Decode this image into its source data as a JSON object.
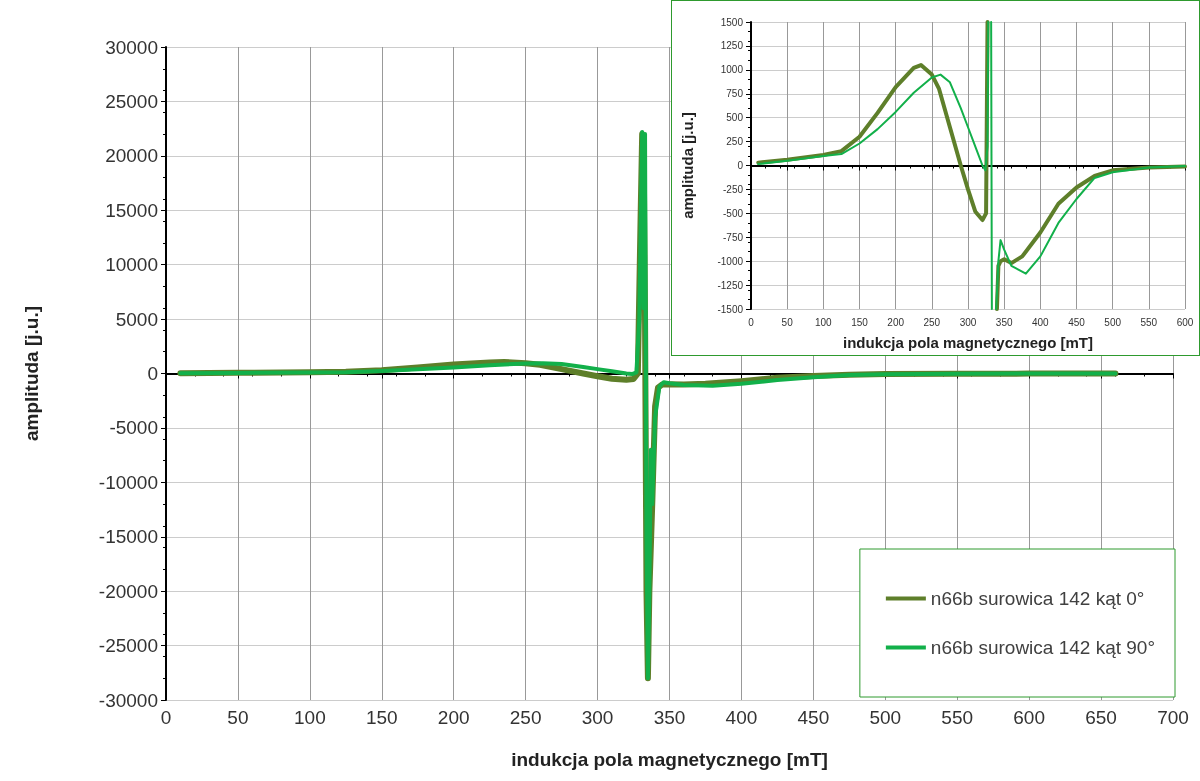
{
  "chart_data": [
    {
      "type": "line",
      "xlabel": "indukcja pola magnetycznego [mT]",
      "ylabel": "amplituda [j.u.]",
      "xlim": [
        0,
        700
      ],
      "xticks": [
        0,
        50,
        100,
        150,
        200,
        250,
        300,
        350,
        400,
        450,
        500,
        550,
        600,
        650,
        700
      ],
      "ylim": [
        -30000,
        30000
      ],
      "yticks": [
        -30000,
        -25000,
        -20000,
        -15000,
        -10000,
        -5000,
        0,
        5000,
        10000,
        15000,
        20000,
        25000,
        30000
      ],
      "grid": true,
      "legend": "bottom right",
      "marker": "none",
      "line_style": "solid",
      "series": [
        {
          "name": "n66b surowica 142 kąt 0°",
          "color": "#5e7f2a",
          "x": [
            10,
            50,
            100,
            125,
            150,
            175,
            200,
            225,
            235,
            250,
            260,
            275,
            290,
            300,
            310,
            320,
            325,
            328,
            330,
            331,
            332,
            333,
            334,
            335,
            336,
            338,
            340,
            342,
            345,
            350,
            360,
            375,
            400,
            425,
            450,
            475,
            500,
            550,
            600,
            660
          ],
          "values": [
            30,
            60,
            110,
            150,
            300,
            550,
            820,
            1020,
            1050,
            950,
            800,
            400,
            0,
            -250,
            -480,
            -570,
            -500,
            0,
            15000,
            22000,
            21000,
            5000,
            -20000,
            -28000,
            -20000,
            -12000,
            -3000,
            -1300,
            -1000,
            -980,
            -1020,
            -950,
            -700,
            -400,
            -230,
            -110,
            -50,
            -20,
            -10,
            0
          ]
        },
        {
          "name": "n66b surowica 142 kąt 90°",
          "color": "#12b04a",
          "x": [
            10,
            50,
            100,
            125,
            150,
            175,
            200,
            225,
            250,
            262,
            275,
            290,
            300,
            310,
            320,
            324,
            327,
            329,
            331,
            332,
            333,
            334,
            335,
            336,
            337,
            338,
            340,
            343,
            346,
            350,
            360,
            380,
            400,
            425,
            450,
            475,
            500,
            550,
            600,
            660
          ],
          "values": [
            15,
            50,
            100,
            120,
            230,
            380,
            560,
            760,
            920,
            950,
            870,
            600,
            400,
            200,
            0,
            -50,
            100,
            5000,
            22200,
            6000,
            22000,
            -15000,
            -28000,
            -20000,
            -7000,
            -12000,
            -4000,
            -1200,
            -800,
            -900,
            -1050,
            -1130,
            -950,
            -600,
            -350,
            -130,
            -70,
            -20,
            -5,
            0
          ]
        }
      ]
    },
    {
      "type": "line",
      "xlabel": "indukcja pola magnetycznego [mT]",
      "ylabel": "amplituda [j.u.]",
      "xlim": [
        0,
        600
      ],
      "xticks": [
        0,
        50,
        100,
        150,
        200,
        250,
        300,
        350,
        400,
        450,
        500,
        550,
        600
      ],
      "ylim": [
        -1500,
        1500
      ],
      "yticks": [
        -1500,
        -1250,
        -1000,
        -750,
        -500,
        -250,
        0,
        250,
        500,
        750,
        1000,
        1250,
        1500
      ],
      "grid": true,
      "marker": "none",
      "line_style": "solid",
      "series": [
        {
          "color": "#5e7f2a",
          "x": [
            10,
            50,
            100,
            125,
            150,
            175,
            200,
            225,
            235,
            250,
            260,
            275,
            290,
            300,
            310,
            320,
            325,
            327,
            327.5,
            340,
            342,
            345,
            350,
            360,
            375,
            400,
            425,
            450,
            475,
            500,
            550,
            600
          ],
          "values": [
            30,
            60,
            110,
            150,
            300,
            550,
            820,
            1020,
            1050,
            950,
            800,
            400,
            0,
            -250,
            -480,
            -570,
            -500,
            1500,
            null,
            -1500,
            -1050,
            -1000,
            -980,
            -1020,
            -950,
            -700,
            -400,
            -230,
            -110,
            -50,
            -20,
            -10
          ]
        },
        {
          "color": "#12b04a",
          "x": [
            10,
            50,
            100,
            125,
            150,
            175,
            200,
            225,
            250,
            262,
            275,
            290,
            300,
            310,
            320,
            324,
            327,
            328,
            330,
            332,
            333,
            335,
            339,
            342,
            345,
            350,
            360,
            380,
            400,
            425,
            450,
            475,
            500,
            550,
            600
          ],
          "values": [
            15,
            50,
            100,
            120,
            230,
            380,
            560,
            760,
            920,
            950,
            870,
            600,
            400,
            200,
            0,
            -50,
            200,
            1500,
            null,
            1500,
            -1500,
            null,
            -1500,
            -1000,
            -780,
            -880,
            -1050,
            -1130,
            -950,
            -600,
            -350,
            -130,
            -70,
            -20,
            -5
          ]
        }
      ]
    }
  ]
}
